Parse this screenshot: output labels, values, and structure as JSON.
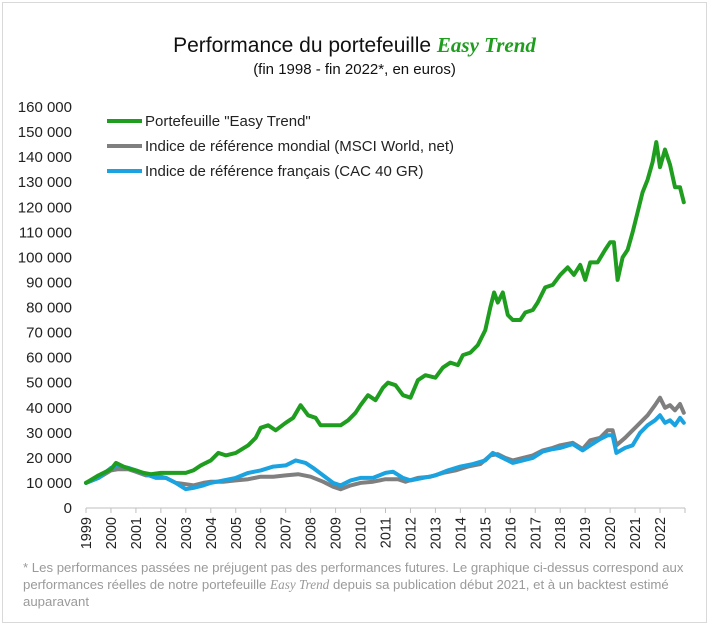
{
  "header": {
    "title_prefix": "Performance du portefeuille",
    "title_brand": "Easy Trend",
    "subtitle": "(fin 1998 - fin 2022*, en euros)"
  },
  "footnote": {
    "part1": "* Les performances passées ne préjugent pas des performances futures. Le graphique ci-dessus correspond aux performances réelles de notre portefeuille ",
    "brand": "Easy Trend",
    "part2": " depuis sa publication début 2021, et à un backtest estimé auparavant"
  },
  "chart_data": {
    "type": "line",
    "title": "Performance du portefeuille Easy Trend",
    "subtitle": "(fin 1998 - fin 2022*, en euros)",
    "xlabel": "",
    "ylabel": "",
    "xlim": [
      1999,
      2023
    ],
    "ylim": [
      0,
      160000
    ],
    "x_ticks": [
      "1999",
      "2000",
      "2001",
      "2002",
      "2003",
      "2004",
      "2005",
      "2006",
      "2007",
      "2008",
      "2009",
      "2010",
      "2011",
      "2012",
      "2013",
      "2014",
      "2015",
      "2016",
      "2017",
      "2018",
      "2019",
      "2020",
      "2021",
      "2022"
    ],
    "y_ticks": [
      "0",
      "10 000",
      "20 000",
      "30 000",
      "40 000",
      "50 000",
      "60 000",
      "70 000",
      "80 000",
      "90 000",
      "100 000",
      "110 000",
      "120 000",
      "130 000",
      "140 000",
      "150 000",
      "160 000"
    ],
    "grid": false,
    "legend_position": "top-left",
    "series": [
      {
        "name": "Portefeuille \"Easy Trend\"",
        "color": "#1f9d1f",
        "points": [
          [
            1999.0,
            10000
          ],
          [
            1999.5,
            13000
          ],
          [
            2000.0,
            15500
          ],
          [
            2000.2,
            18000
          ],
          [
            2000.5,
            16500
          ],
          [
            2000.8,
            15500
          ],
          [
            2001.0,
            15000
          ],
          [
            2001.3,
            14000
          ],
          [
            2001.6,
            13500
          ],
          [
            2002.0,
            14000
          ],
          [
            2002.5,
            14000
          ],
          [
            2003.0,
            14000
          ],
          [
            2003.3,
            15000
          ],
          [
            2003.6,
            17000
          ],
          [
            2004.0,
            19000
          ],
          [
            2004.3,
            22000
          ],
          [
            2004.6,
            21000
          ],
          [
            2005.0,
            22000
          ],
          [
            2005.5,
            25000
          ],
          [
            2005.8,
            28000
          ],
          [
            2006.0,
            32000
          ],
          [
            2006.3,
            33000
          ],
          [
            2006.6,
            31000
          ],
          [
            2007.0,
            34000
          ],
          [
            2007.3,
            36000
          ],
          [
            2007.6,
            41000
          ],
          [
            2007.9,
            37000
          ],
          [
            2008.2,
            36000
          ],
          [
            2008.4,
            33000
          ],
          [
            2008.8,
            33000
          ],
          [
            2009.2,
            33000
          ],
          [
            2009.5,
            35000
          ],
          [
            2009.8,
            38000
          ],
          [
            2010.0,
            41000
          ],
          [
            2010.3,
            45000
          ],
          [
            2010.6,
            43000
          ],
          [
            2010.9,
            48000
          ],
          [
            2011.1,
            50000
          ],
          [
            2011.4,
            49000
          ],
          [
            2011.7,
            45000
          ],
          [
            2012.0,
            44000
          ],
          [
            2012.3,
            51000
          ],
          [
            2012.6,
            53000
          ],
          [
            2013.0,
            52000
          ],
          [
            2013.3,
            56000
          ],
          [
            2013.6,
            58000
          ],
          [
            2013.9,
            57000
          ],
          [
            2014.1,
            61000
          ],
          [
            2014.4,
            62000
          ],
          [
            2014.7,
            65000
          ],
          [
            2015.0,
            71000
          ],
          [
            2015.2,
            80000
          ],
          [
            2015.35,
            86000
          ],
          [
            2015.5,
            82000
          ],
          [
            2015.7,
            86000
          ],
          [
            2015.9,
            77000
          ],
          [
            2016.1,
            75000
          ],
          [
            2016.4,
            75000
          ],
          [
            2016.6,
            78000
          ],
          [
            2016.9,
            79000
          ],
          [
            2017.1,
            82000
          ],
          [
            2017.4,
            88000
          ],
          [
            2017.7,
            89000
          ],
          [
            2018.0,
            93000
          ],
          [
            2018.3,
            96000
          ],
          [
            2018.55,
            93000
          ],
          [
            2018.8,
            97000
          ],
          [
            2019.0,
            91000
          ],
          [
            2019.2,
            98000
          ],
          [
            2019.5,
            98000
          ],
          [
            2019.8,
            103000
          ],
          [
            2020.0,
            106000
          ],
          [
            2020.15,
            106000
          ],
          [
            2020.3,
            91000
          ],
          [
            2020.5,
            100000
          ],
          [
            2020.7,
            103000
          ],
          [
            2020.9,
            110000
          ],
          [
            2021.1,
            118000
          ],
          [
            2021.3,
            126000
          ],
          [
            2021.5,
            131000
          ],
          [
            2021.7,
            138000
          ],
          [
            2021.85,
            146000
          ],
          [
            2022.0,
            136000
          ],
          [
            2022.2,
            143000
          ],
          [
            2022.4,
            137000
          ],
          [
            2022.6,
            128000
          ],
          [
            2022.8,
            128000
          ],
          [
            2022.95,
            122000
          ]
        ]
      },
      {
        "name": "Indice de référence mondial (MSCI World, net)",
        "color": "#7f7f7f",
        "points": [
          [
            1999.0,
            10000
          ],
          [
            1999.5,
            12000
          ],
          [
            2000.0,
            15000
          ],
          [
            2000.3,
            15500
          ],
          [
            2000.7,
            15500
          ],
          [
            2001.0,
            14500
          ],
          [
            2001.4,
            13000
          ],
          [
            2001.8,
            13000
          ],
          [
            2002.2,
            12000
          ],
          [
            2002.6,
            10000
          ],
          [
            2003.0,
            9500
          ],
          [
            2003.3,
            9000
          ],
          [
            2003.7,
            10000
          ],
          [
            2004.0,
            10500
          ],
          [
            2004.5,
            10500
          ],
          [
            2005.0,
            11000
          ],
          [
            2005.5,
            11500
          ],
          [
            2006.0,
            12500
          ],
          [
            2006.5,
            12500
          ],
          [
            2007.0,
            13000
          ],
          [
            2007.5,
            13500
          ],
          [
            2008.0,
            12500
          ],
          [
            2008.5,
            10500
          ],
          [
            2008.9,
            8500
          ],
          [
            2009.2,
            7500
          ],
          [
            2009.6,
            9000
          ],
          [
            2010.0,
            10000
          ],
          [
            2010.5,
            10500
          ],
          [
            2011.0,
            11500
          ],
          [
            2011.5,
            11500
          ],
          [
            2011.8,
            10500
          ],
          [
            2012.3,
            12000
          ],
          [
            2012.8,
            12500
          ],
          [
            2013.3,
            14000
          ],
          [
            2013.8,
            15000
          ],
          [
            2014.3,
            16500
          ],
          [
            2014.8,
            17500
          ],
          [
            2015.2,
            21000
          ],
          [
            2015.5,
            21500
          ],
          [
            2015.8,
            20000
          ],
          [
            2016.1,
            19000
          ],
          [
            2016.5,
            20000
          ],
          [
            2016.9,
            21000
          ],
          [
            2017.3,
            23000
          ],
          [
            2017.7,
            24000
          ],
          [
            2018.0,
            25000
          ],
          [
            2018.5,
            26000
          ],
          [
            2018.9,
            23500
          ],
          [
            2019.2,
            27000
          ],
          [
            2019.6,
            28000
          ],
          [
            2019.9,
            31000
          ],
          [
            2020.1,
            31000
          ],
          [
            2020.25,
            25000
          ],
          [
            2020.6,
            28000
          ],
          [
            2020.9,
            31000
          ],
          [
            2021.2,
            34000
          ],
          [
            2021.5,
            37000
          ],
          [
            2021.8,
            41000
          ],
          [
            2022.0,
            44000
          ],
          [
            2022.2,
            40000
          ],
          [
            2022.4,
            41000
          ],
          [
            2022.6,
            39000
          ],
          [
            2022.8,
            41500
          ],
          [
            2022.95,
            38000
          ]
        ]
      },
      {
        "name": "Indice de référence français (CAC 40 GR)",
        "color": "#1aa3e0",
        "points": [
          [
            1999.0,
            10000
          ],
          [
            1999.5,
            12000
          ],
          [
            2000.0,
            16000
          ],
          [
            2000.3,
            17000
          ],
          [
            2000.7,
            16000
          ],
          [
            2001.0,
            15000
          ],
          [
            2001.4,
            13500
          ],
          [
            2001.8,
            12000
          ],
          [
            2002.2,
            12000
          ],
          [
            2002.6,
            10000
          ],
          [
            2003.0,
            7500
          ],
          [
            2003.3,
            8000
          ],
          [
            2003.7,
            9000
          ],
          [
            2004.0,
            10000
          ],
          [
            2004.5,
            11000
          ],
          [
            2005.0,
            12000
          ],
          [
            2005.5,
            14000
          ],
          [
            2006.0,
            15000
          ],
          [
            2006.5,
            16500
          ],
          [
            2007.0,
            17000
          ],
          [
            2007.4,
            19000
          ],
          [
            2007.8,
            18000
          ],
          [
            2008.1,
            16000
          ],
          [
            2008.5,
            13000
          ],
          [
            2008.9,
            10000
          ],
          [
            2009.2,
            9000
          ],
          [
            2009.6,
            11000
          ],
          [
            2010.0,
            12000
          ],
          [
            2010.5,
            12000
          ],
          [
            2011.0,
            14000
          ],
          [
            2011.3,
            14500
          ],
          [
            2011.7,
            12000
          ],
          [
            2012.0,
            11000
          ],
          [
            2012.5,
            12000
          ],
          [
            2013.0,
            13000
          ],
          [
            2013.5,
            15000
          ],
          [
            2014.0,
            16500
          ],
          [
            2014.5,
            17500
          ],
          [
            2015.0,
            19000
          ],
          [
            2015.3,
            22000
          ],
          [
            2015.7,
            20000
          ],
          [
            2016.1,
            18000
          ],
          [
            2016.5,
            19000
          ],
          [
            2016.9,
            20000
          ],
          [
            2017.3,
            22500
          ],
          [
            2017.7,
            23500
          ],
          [
            2018.0,
            24000
          ],
          [
            2018.5,
            25500
          ],
          [
            2018.9,
            23000
          ],
          [
            2019.2,
            25000
          ],
          [
            2019.6,
            27500
          ],
          [
            2019.9,
            29000
          ],
          [
            2020.1,
            29000
          ],
          [
            2020.25,
            22000
          ],
          [
            2020.6,
            24000
          ],
          [
            2020.9,
            25000
          ],
          [
            2021.2,
            30000
          ],
          [
            2021.5,
            33000
          ],
          [
            2021.8,
            35000
          ],
          [
            2022.0,
            37000
          ],
          [
            2022.2,
            34000
          ],
          [
            2022.4,
            35000
          ],
          [
            2022.6,
            33000
          ],
          [
            2022.8,
            36000
          ],
          [
            2022.95,
            34000
          ]
        ]
      }
    ]
  }
}
